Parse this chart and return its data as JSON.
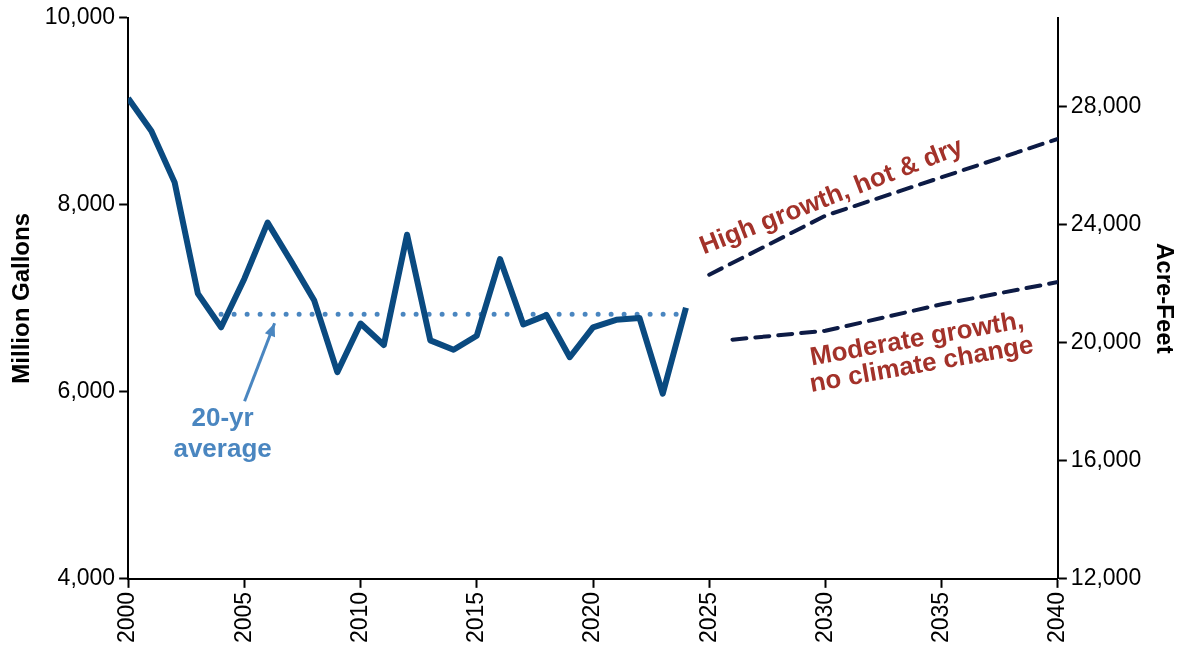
{
  "chart_data": {
    "type": "line",
    "xlabel": null,
    "ylabel": "Million Gallons",
    "y2label": "Acre-Feet",
    "xlim": [
      2000,
      2040
    ],
    "xticks": [
      2000,
      2005,
      2010,
      2015,
      2020,
      2025,
      2030,
      2035,
      2040
    ],
    "ylim": [
      4000,
      10000
    ],
    "yticks": [
      {
        "value": 4000,
        "label": "4,000"
      },
      {
        "value": 6000,
        "label": "6,000"
      },
      {
        "value": 8000,
        "label": "8,000"
      },
      {
        "value": 10000,
        "label": "10,000"
      }
    ],
    "y2lim": [
      12000,
      31000
    ],
    "y2ticks": [
      {
        "value": 12000,
        "label": "12,000"
      },
      {
        "value": 16000,
        "label": "16,000"
      },
      {
        "value": 20000,
        "label": "20,000"
      },
      {
        "value": 24000,
        "label": "24,000"
      },
      {
        "value": 28000,
        "label": "28,000"
      }
    ],
    "grid": false,
    "legend": false,
    "marker": "none",
    "series": [
      {
        "color": "#0a4a80",
        "line_style": "solid",
        "x": [
          2000,
          2001,
          2002,
          2003,
          2004,
          2005,
          2006,
          2007,
          2008,
          2009,
          2010,
          2011,
          2012,
          2013,
          2014,
          2015,
          2016,
          2017,
          2018,
          2019,
          2020,
          2021,
          2022,
          2023,
          2024
        ],
        "values": [
          9140,
          8790,
          8240,
          7050,
          6690,
          7210,
          7810,
          7400,
          6980,
          6210,
          6730,
          6500,
          7680,
          6550,
          6450,
          6600,
          7420,
          6720,
          6820,
          6370,
          6690,
          6770,
          6790,
          5980,
          6900
        ]
      },
      {
        "name": "20-yr average",
        "color": "#4a86c0",
        "line_style": "dotted",
        "x": [
          2004,
          2024
        ],
        "values": [
          6830,
          6830
        ]
      },
      {
        "name": "High growth, hot & dry",
        "color": "#0d1b45",
        "line_style": "dashed",
        "axis": "y2",
        "x": [
          2025,
          2030,
          2035,
          2040
        ],
        "values": [
          22300,
          24300,
          25600,
          26900
        ]
      },
      {
        "name": "Moderate growth, no climate change",
        "color": "#0d1b45",
        "line_style": "dashed",
        "axis": "y2",
        "x": [
          2026,
          2030,
          2035,
          2040
        ],
        "values": [
          20100,
          20400,
          21300,
          22050
        ]
      }
    ]
  }
}
